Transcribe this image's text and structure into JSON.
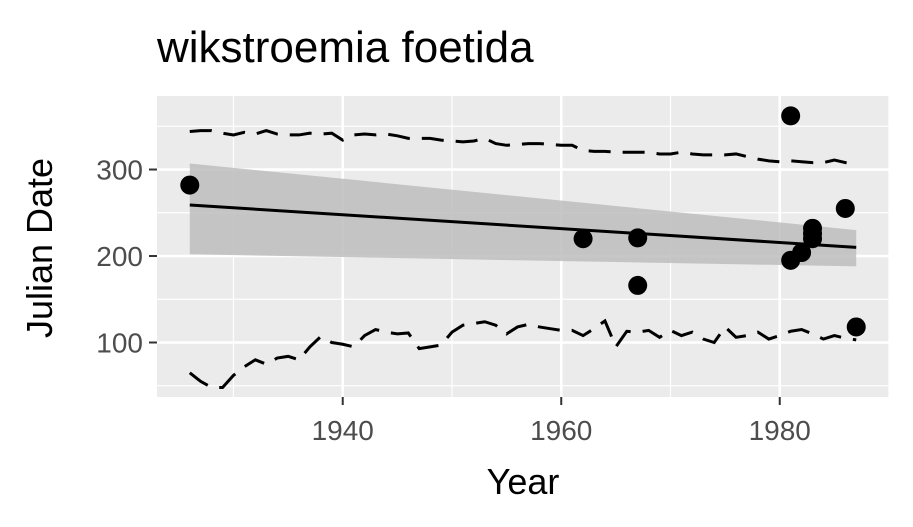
{
  "chart_data": {
    "type": "scatter",
    "title": "wikstroemia foetida",
    "xlabel": "Year",
    "ylabel": "Julian Date",
    "xlim": [
      1923,
      1990
    ],
    "ylim": [
      37,
      385
    ],
    "x_ticks": [
      1940,
      1960,
      1980
    ],
    "y_ticks": [
      100,
      200,
      300
    ],
    "x_minor_ticks": [
      1930,
      1950,
      1970,
      1990
    ],
    "y_minor_ticks": [
      50,
      150,
      250,
      350
    ],
    "grid": true,
    "legend": "none",
    "colors": {
      "panel": "#ebebeb",
      "grid": "#ffffff",
      "points": "#000000",
      "band": "#bdbdbd",
      "line": "#000000"
    },
    "points": [
      {
        "x": 1926,
        "y": 282
      },
      {
        "x": 1962,
        "y": 220
      },
      {
        "x": 1967,
        "y": 221
      },
      {
        "x": 1967,
        "y": 166
      },
      {
        "x": 1981,
        "y": 362
      },
      {
        "x": 1981,
        "y": 195
      },
      {
        "x": 1982,
        "y": 204
      },
      {
        "x": 1983,
        "y": 232
      },
      {
        "x": 1983,
        "y": 226
      },
      {
        "x": 1983,
        "y": 220
      },
      {
        "x": 1986,
        "y": 255
      },
      {
        "x": 1987,
        "y": 118
      }
    ],
    "trend_line": {
      "x": [
        1926,
        1987
      ],
      "y": [
        259,
        210
      ]
    },
    "confidence_band": {
      "x": [
        1926,
        1987
      ],
      "upper": [
        307,
        230
      ],
      "lower": [
        202,
        188
      ]
    },
    "upper_dashed": {
      "x": [
        1926,
        1927,
        1928,
        1929,
        1930,
        1931,
        1932,
        1933,
        1934,
        1935,
        1936,
        1937,
        1938,
        1939,
        1940,
        1941,
        1942,
        1943,
        1944,
        1945,
        1946,
        1947,
        1948,
        1949,
        1950,
        1951,
        1952,
        1953,
        1954,
        1955,
        1956,
        1957,
        1958,
        1959,
        1960,
        1961,
        1962,
        1963,
        1964,
        1965,
        1966,
        1967,
        1968,
        1969,
        1970,
        1971,
        1972,
        1973,
        1974,
        1975,
        1976,
        1977,
        1978,
        1979,
        1980,
        1981,
        1982,
        1983,
        1984,
        1985,
        1986,
        1987
      ],
      "y": [
        344,
        345,
        345,
        342,
        340,
        343,
        341,
        345,
        341,
        340,
        340,
        342,
        341,
        342,
        334,
        340,
        341,
        340,
        341,
        339,
        336,
        336,
        336,
        334,
        333,
        332,
        333,
        336,
        330,
        328,
        329,
        330,
        330,
        329,
        328,
        328,
        322,
        321,
        321,
        320,
        320,
        320,
        320,
        318,
        318,
        320,
        318,
        317,
        317,
        317,
        318,
        315,
        312,
        310,
        309,
        310,
        309,
        308,
        308,
        311,
        308,
        305
      ]
    },
    "lower_dashed": {
      "x": [
        1926,
        1927,
        1928,
        1929,
        1930,
        1931,
        1932,
        1933,
        1934,
        1935,
        1936,
        1937,
        1938,
        1939,
        1940,
        1941,
        1942,
        1943,
        1944,
        1945,
        1946,
        1947,
        1948,
        1949,
        1950,
        1951,
        1952,
        1953,
        1954,
        1955,
        1956,
        1957,
        1958,
        1959,
        1960,
        1961,
        1962,
        1963,
        1964,
        1965,
        1966,
        1967,
        1968,
        1969,
        1970,
        1971,
        1972,
        1973,
        1974,
        1975,
        1976,
        1977,
        1978,
        1979,
        1980,
        1981,
        1982,
        1983,
        1984,
        1985,
        1986,
        1987
      ],
      "y": [
        65,
        55,
        48,
        48,
        62,
        72,
        80,
        75,
        82,
        84,
        80,
        95,
        107,
        100,
        98,
        95,
        108,
        115,
        112,
        110,
        111,
        93,
        95,
        97,
        112,
        120,
        122,
        124,
        120,
        110,
        118,
        121,
        118,
        116,
        114,
        114,
        108,
        116,
        125,
        95,
        113,
        112,
        114,
        106,
        114,
        108,
        112,
        104,
        100,
        118,
        106,
        108,
        112,
        104,
        108,
        113,
        115,
        110,
        104,
        108,
        105,
        103
      ]
    }
  }
}
